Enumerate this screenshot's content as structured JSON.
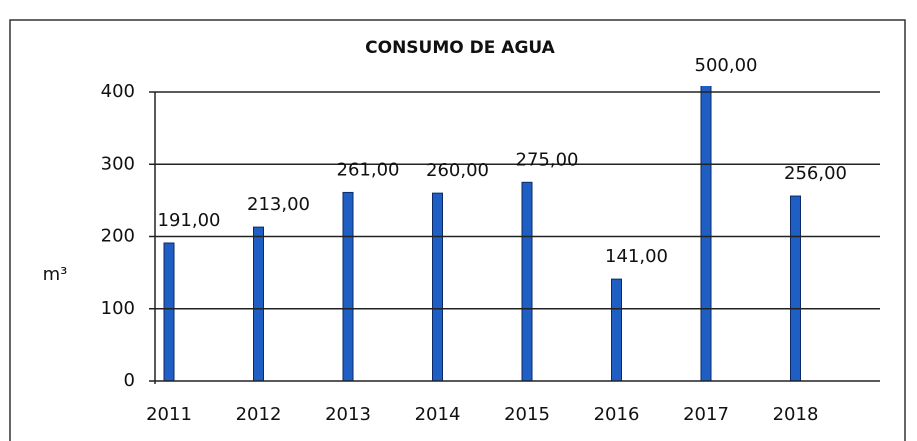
{
  "chart_data": {
    "type": "bar",
    "title": "CONSUMO DE AGUA",
    "y_label": "m³",
    "categories": [
      "2011",
      "2012",
      "2013",
      "2014",
      "2015",
      "2016",
      "2017",
      "2018"
    ],
    "values": [
      191,
      213,
      261,
      260,
      275,
      141,
      500,
      256
    ],
    "value_labels": [
      "191,00",
      "213,00",
      "261,00",
      "260,00",
      "275,00",
      "141,00",
      "500,00",
      "256,00"
    ],
    "color": "#1f5fc4",
    "ylim": [
      0,
      400
    ],
    "yticks": [
      0,
      100,
      200,
      300,
      400
    ],
    "grid": true
  }
}
